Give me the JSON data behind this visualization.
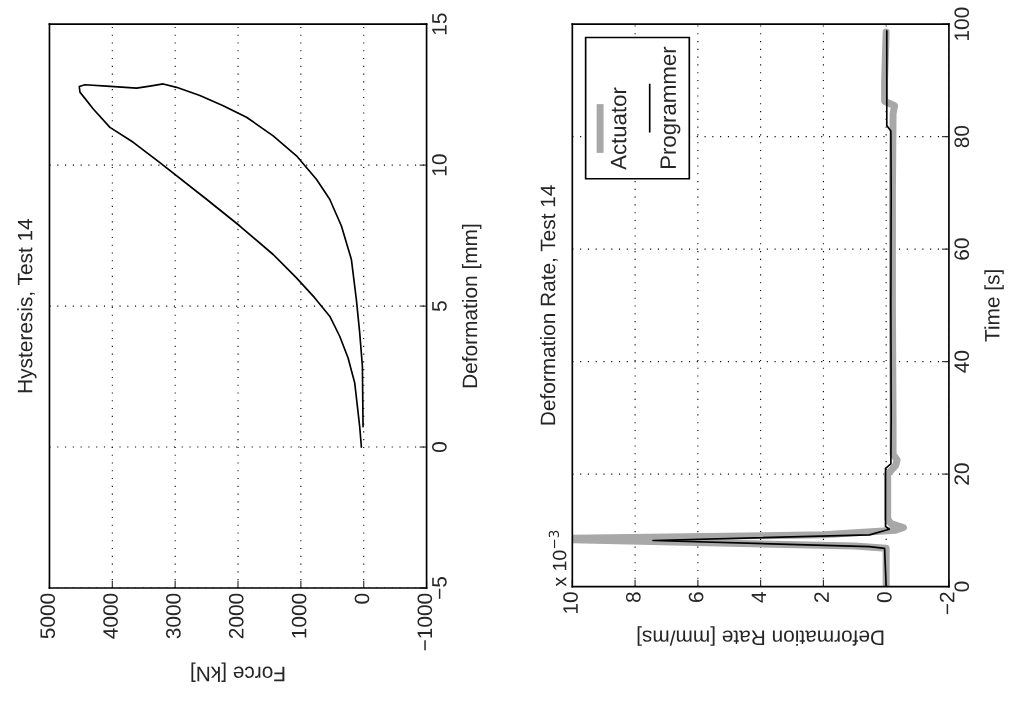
{
  "chart_data": [
    {
      "type": "line",
      "title": "Hysteresis, Test 14",
      "xlabel": "Force [kN]",
      "ylabel": "Deformation [mm]",
      "xlim": [
        5000,
        -1000
      ],
      "xticks": [
        5000,
        4000,
        3000,
        2000,
        1000,
        0,
        {
          "value": -1000,
          "label": "−1000"
        }
      ],
      "ylim": [
        -5,
        15
      ],
      "yticks": [
        {
          "value": -5,
          "label": "−5"
        },
        0,
        5,
        10,
        15
      ],
      "grid": true,
      "color": "#000000",
      "x": [
        37,
        64,
        143,
        249,
        382,
        541,
        779,
        1070,
        1441,
        1971,
        2501,
        3243,
        3667,
        4038,
        4303,
        4515,
        4526,
        4436,
        4091,
        3614,
        3402,
        3190,
        2978,
        2607,
        2236,
        1865,
        1441,
        1070,
        753,
        541,
        355,
        196,
        117,
        64,
        21,
        11
      ],
      "values": [
        0,
        0.72,
        2.27,
        3.16,
        3.93,
        4.64,
        5.29,
        6.0,
        6.83,
        7.84,
        8.79,
        10.09,
        10.81,
        11.34,
        11.99,
        12.59,
        12.79,
        12.85,
        12.8,
        12.73,
        12.8,
        12.88,
        12.76,
        12.47,
        12.11,
        11.7,
        11.04,
        10.33,
        9.5,
        8.79,
        7.84,
        6.65,
        5.23,
        4.05,
        2.86,
        0.72
      ]
    },
    {
      "type": "line",
      "title": "Deformation Rate, Test 14",
      "xlabel": "Deformation Rate [mm/ms]",
      "ylabel": "Time [s]",
      "annotations": [
        "x 10$^{−3}$"
      ],
      "xlim": [
        10,
        -2
      ],
      "xticks": [
        10,
        8,
        6,
        4,
        2,
        0,
        {
          "value": -2,
          "label": "−2"
        }
      ],
      "ylim": [
        0,
        100
      ],
      "yticks": [
        0,
        20,
        40,
        60,
        80,
        100
      ],
      "grid": true,
      "legend": "top left",
      "series": [
        {
          "name": "Actuator",
          "color": "#a8a8a8",
          "x": [
            0,
            0,
            1.0,
            10,
            10,
            2.0,
            -0.3,
            -0.55,
            -0.15,
            -0.05,
            -0.05,
            -0.3,
            -0.35,
            -0.22,
            -0.22,
            -0.2,
            -0.2,
            -0.22,
            -0.27,
            0.05,
            0.05,
            0
          ],
          "values": [
            0,
            6.8,
            7.2,
            8.3,
            8.6,
            9.2,
            10.0,
            10.5,
            11.2,
            12,
            20,
            21.5,
            22.5,
            23.5,
            30,
            50,
            70,
            84,
            85.5,
            86.3,
            90,
            98.6
          ]
        },
        {
          "name": "Programmer",
          "color": "#000000",
          "x": [
            0,
            0.05,
            0.53,
            7.43,
            0.53,
            -0.1,
            0.02,
            0.02,
            -0.15,
            -0.16,
            -0.15,
            -0.16,
            -0.15,
            -0.02,
            -0.02
          ],
          "values": [
            0,
            6.8,
            7.1,
            8.2,
            9.2,
            10.2,
            10.7,
            21,
            21.8,
            30,
            50,
            70,
            81,
            82,
            98.8
          ]
        }
      ]
    }
  ]
}
